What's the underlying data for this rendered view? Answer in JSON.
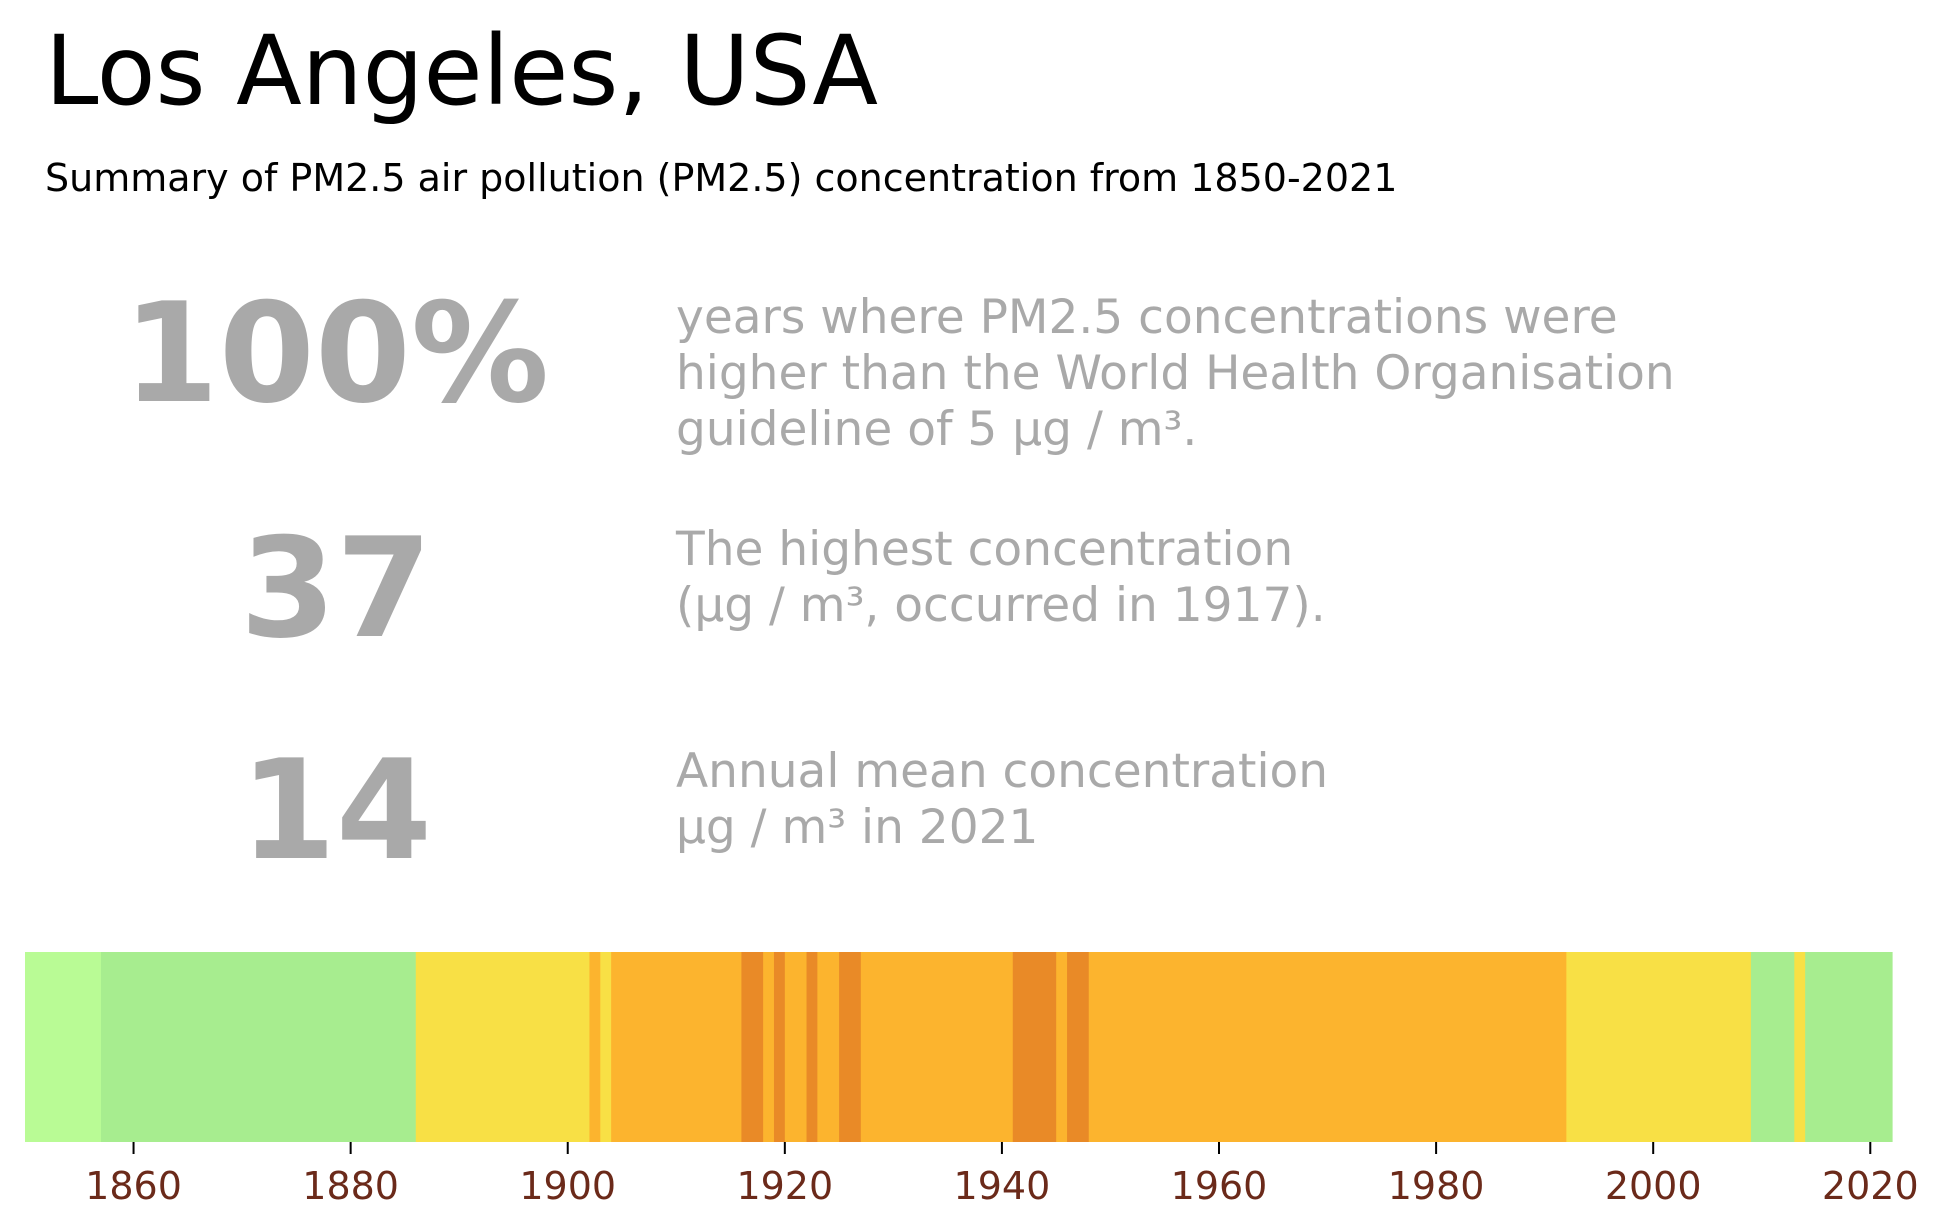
{
  "title": "Los Angeles, USA",
  "subtitle": "Summary of PM2.5 air pollution (PM2.5) concentration from 1850-2021",
  "stats": [
    {
      "value": "100%",
      "lines": [
        "years where PM2.5 concentrations were",
        "higher than the World Health Organisation",
        "guideline of 5 µg / m³."
      ]
    },
    {
      "value": "37",
      "lines": [
        "The highest concentration",
        "(µg / m³, occurred in 1917)."
      ]
    },
    {
      "value": "14",
      "lines": [
        "Annual mean concentration",
        "µg / m³ in 2021"
      ]
    }
  ],
  "colors": {
    "text_gray": "#a9a9a9",
    "tick_label": "#6b2a1a",
    "level_1": "#b9fb95",
    "level_2": "#a7ed8f",
    "level_3": "#f8e045",
    "level_4": "#fcb42e",
    "level_5": "#e98a27"
  },
  "chart_data": {
    "type": "heatmap",
    "description_kind": "climate-stripes",
    "xlim": [
      1850,
      2022
    ],
    "xticks": [
      1860,
      1880,
      1900,
      1920,
      1940,
      1960,
      1980,
      2000,
      2020
    ],
    "level_colors": [
      "#b9fb95",
      "#a7ed8f",
      "#f8e045",
      "#fcb42e",
      "#e98a27"
    ],
    "segments": [
      {
        "start": 1850,
        "end": 1857,
        "level": 1
      },
      {
        "start": 1857,
        "end": 1886,
        "level": 2
      },
      {
        "start": 1886,
        "end": 1902,
        "level": 3
      },
      {
        "start": 1902,
        "end": 1903,
        "level": 4
      },
      {
        "start": 1903,
        "end": 1904,
        "level": 3
      },
      {
        "start": 1904,
        "end": 1916,
        "level": 4
      },
      {
        "start": 1916,
        "end": 1918,
        "level": 5
      },
      {
        "start": 1918,
        "end": 1919,
        "level": 4
      },
      {
        "start": 1919,
        "end": 1920,
        "level": 5
      },
      {
        "start": 1920,
        "end": 1922,
        "level": 4
      },
      {
        "start": 1922,
        "end": 1923,
        "level": 5
      },
      {
        "start": 1923,
        "end": 1925,
        "level": 4
      },
      {
        "start": 1925,
        "end": 1927,
        "level": 5
      },
      {
        "start": 1927,
        "end": 1941,
        "level": 4
      },
      {
        "start": 1941,
        "end": 1945,
        "level": 5
      },
      {
        "start": 1945,
        "end": 1946,
        "level": 4
      },
      {
        "start": 1946,
        "end": 1948,
        "level": 5
      },
      {
        "start": 1948,
        "end": 1992,
        "level": 4
      },
      {
        "start": 1992,
        "end": 2009,
        "level": 3
      },
      {
        "start": 2009,
        "end": 2013,
        "level": 2
      },
      {
        "start": 2013,
        "end": 2014,
        "level": 3
      },
      {
        "start": 2014,
        "end": 2022,
        "level": 2
      }
    ]
  }
}
